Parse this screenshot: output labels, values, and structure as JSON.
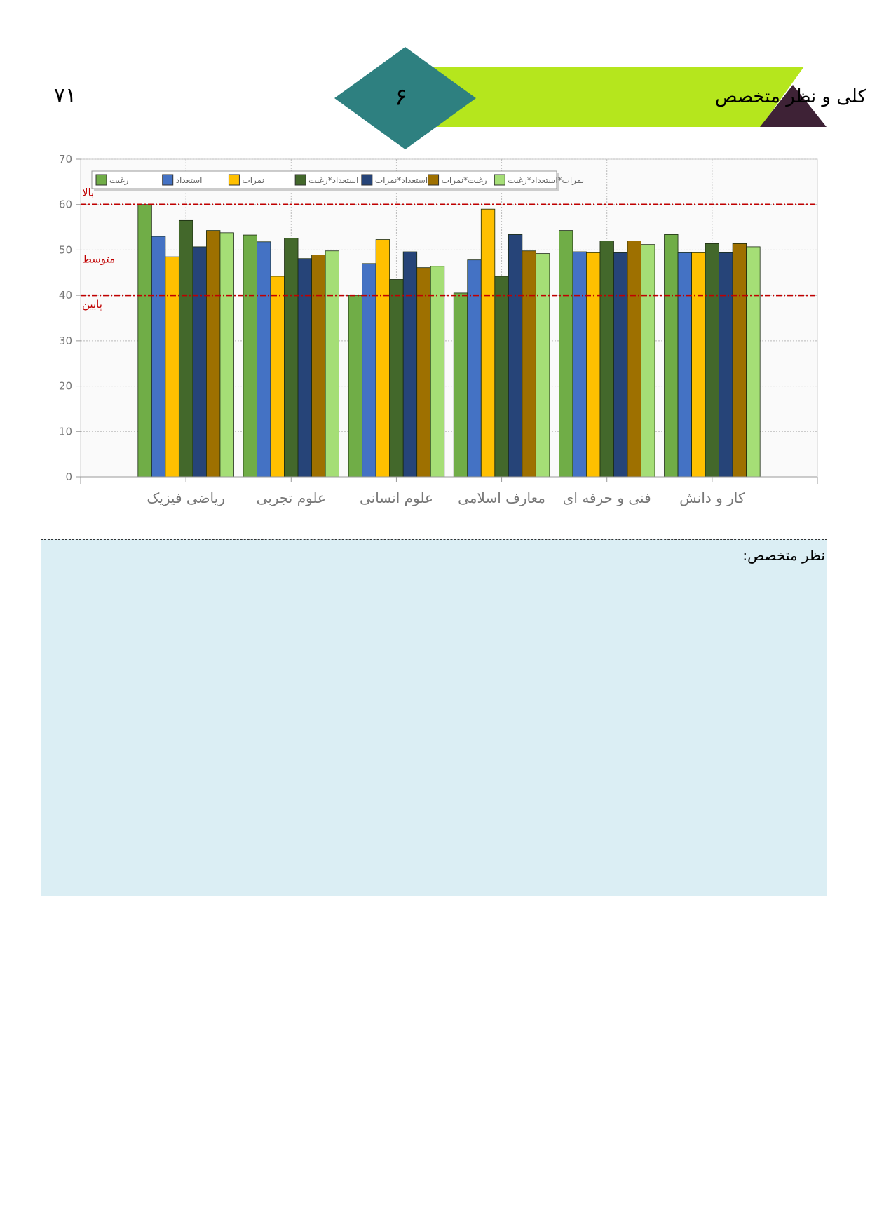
{
  "header": {
    "page_number": "۷۱",
    "section_number": "۶",
    "title": "نیمرخ کلی و نظر متخصص"
  },
  "chart_data": {
    "type": "bar",
    "categories": [
      "ریاضی فیزیک",
      "علوم تجربی",
      "علوم انسانی",
      "معارف اسلامی",
      "فنی و حرفه ای",
      "کار و دانش"
    ],
    "series": [
      {
        "name": "رغبت",
        "color": "#70ad47",
        "values": [
          60,
          53.3,
          40,
          40.5,
          54.3,
          53.4
        ]
      },
      {
        "name": "استعداد",
        "color": "#4472c4",
        "values": [
          53,
          51.8,
          47,
          47.8,
          49.6,
          49.4
        ]
      },
      {
        "name": "نمرات",
        "color": "#ffc000",
        "values": [
          48.5,
          44.2,
          52.3,
          59,
          49.4,
          49.4
        ]
      },
      {
        "name": "استعداد*رغبت",
        "color": "#43682b",
        "values": [
          56.5,
          52.6,
          43.5,
          44.2,
          52,
          51.4
        ]
      },
      {
        "name": "استعداد*نمرات",
        "color": "#264478",
        "values": [
          50.7,
          48.1,
          49.6,
          53.4,
          49.4,
          49.4
        ]
      },
      {
        "name": "رغبت*نمرات",
        "color": "#9e7000",
        "values": [
          54.3,
          48.9,
          46.1,
          49.8,
          52,
          51.4
        ]
      },
      {
        "name": "نمرات*استعداد*رغبت",
        "color": "#a5de76",
        "values": [
          53.8,
          49.8,
          46.4,
          49.2,
          51.2,
          50.7
        ]
      }
    ],
    "ylim": [
      0,
      70
    ],
    "yticks": [
      0,
      10,
      20,
      30,
      40,
      50,
      60,
      70
    ],
    "grid": true,
    "legend": "top-left",
    "reference_lines": [
      {
        "value": 60,
        "label": "بالا",
        "line": true
      },
      {
        "value": 50,
        "label": "متوسط",
        "line": false
      },
      {
        "value": 40,
        "label": "پایین",
        "line": true
      }
    ],
    "reference_color": "#c00000"
  },
  "note": {
    "label": "نظر متخصص:"
  }
}
